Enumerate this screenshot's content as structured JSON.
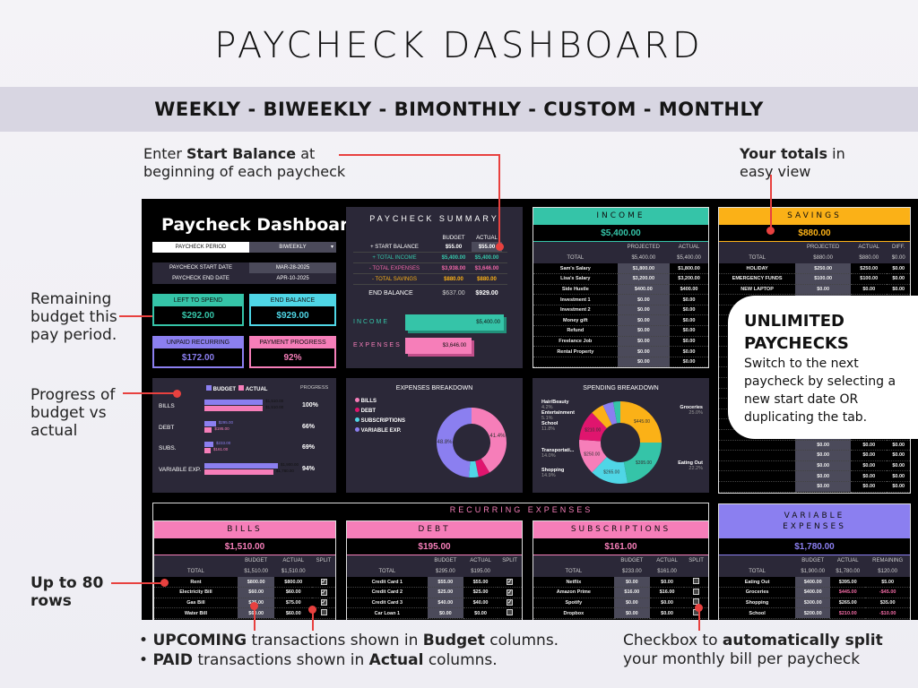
{
  "header": {
    "title": "PAYCHECK DASHBOARD",
    "frequencies": "WEEKLY - BIWEEKLY - BIMONTHLY - CUSTOM - MONTHLY"
  },
  "annotations": {
    "start_balance_pre": "Enter ",
    "start_balance_bold": "Start Balance",
    "start_balance_post": " at",
    "start_balance_line2": "beginning of each paycheck",
    "totals_bold": "Your totals",
    "totals_post": " in",
    "totals_line2": "easy view",
    "remaining": "Remaining budget this pay period.",
    "progress": "Progress of budget vs actual",
    "rows": "Up to 80 rows",
    "upcoming_bold": "UPCOMING",
    "upcoming_mid": " transactions shown in ",
    "upcoming_bold2": "Budget",
    "upcoming_post": " columns.",
    "paid_bold": "PAID",
    "paid_mid": " transactions shown in ",
    "paid_bold2": "Actual",
    "paid_post": " columns.",
    "split_pre": "Checkbox to ",
    "split_bold": "automatically split",
    "split_line2": "your monthly bill per paycheck",
    "callout_title1": "UNLIMITED",
    "callout_title2": "PAYCHECKS",
    "callout_body": "Switch to the next paycheck by selecting a new start date OR duplicating the tab."
  },
  "dashboard": {
    "title": "Paycheck Dashboard",
    "period_label": "PAYCHECK PERIOD",
    "period_value": "BIWEEKLY",
    "start_label": "PAYCHECK START DATE",
    "start_value": "Mar-28-2025",
    "end_label": "PAYCHECK END DATE",
    "end_value": "Apr-10-2025",
    "kpis": [
      {
        "label": "LEFT TO SPEND",
        "value": "$292.00",
        "color": "#35c4a8"
      },
      {
        "label": "END BALANCE",
        "value": "$929.00",
        "color": "#4fd6e6"
      },
      {
        "label": "UNPAID RECURRING",
        "value": "$172.00",
        "color": "#8b7ff0"
      },
      {
        "label": "PAYMENT PROGRESS",
        "value": "92%",
        "color": "#f67eb9"
      }
    ]
  },
  "summary": {
    "title": "PAYCHECK  SUMMARY",
    "col_budget": "BUDGET",
    "col_actual": "ACTUAL",
    "rows": [
      {
        "label": "+ START BALANCE",
        "budget": "$55.00",
        "actual": "$55.00",
        "color": "#ffffff"
      },
      {
        "label": "+ TOTAL INCOME",
        "budget": "$5,400.00",
        "actual": "$5,400.00",
        "color": "#35c4a8"
      },
      {
        "label": "- TOTAL EXPENSES",
        "budget": "$3,938.00",
        "actual": "$3,646.00",
        "color": "#f067a8"
      },
      {
        "label": "- TOTAL SAVINGS",
        "budget": "$880.00",
        "actual": "$880.00",
        "color": "#fbb117"
      }
    ],
    "end_label": "END BALANCE",
    "end_budget": "$637.00",
    "end_actual": "$929.00",
    "income_label": "INCOME",
    "income_value": "$5,400.00",
    "income_amount": 5400,
    "expenses_label": "EXPENSES",
    "expenses_value": "$3,646.00",
    "expenses_amount": 3646
  },
  "income": {
    "title": "INCOME",
    "total": "$5,400.00",
    "color": "#35c4a8",
    "col1": "PROJECTED",
    "col2": "ACTUAL",
    "total_label": "TOTAL",
    "total1": "$5,400.00",
    "total2": "$5,400.00",
    "rows": [
      [
        "Sam's Salary",
        "$1,800.00",
        "$1,800.00"
      ],
      [
        "Lisa's Salary",
        "$3,200.00",
        "$3,200.00"
      ],
      [
        "Side Hustle",
        "$400.00",
        "$400.00"
      ],
      [
        "Investment 1",
        "$0.00",
        "$0.00"
      ],
      [
        "Investment 2",
        "$0.00",
        "$0.00"
      ],
      [
        "Money gift",
        "$0.00",
        "$0.00"
      ],
      [
        "Refund",
        "$0.00",
        "$0.00"
      ],
      [
        "Freelance Job",
        "$0.00",
        "$0.00"
      ],
      [
        "Rental Property",
        "$0.00",
        "$0.00"
      ],
      [
        "",
        "$0.00",
        "$0.00"
      ]
    ]
  },
  "savings": {
    "title": "SAVINGS",
    "total": "$880.00",
    "color": "#fbb117",
    "col1": "PROJECTED",
    "col2": "ACTUAL",
    "col3": "DIFF.",
    "total_label": "TOTAL",
    "total1": "$880.00",
    "total2": "$880.00",
    "total3": "$0.00",
    "rows": [
      [
        "HOLIDAY",
        "$250.00",
        "$250.00",
        "$0.00"
      ],
      [
        "EMERGENCY FUNDS",
        "$100.00",
        "$100.00",
        "$0.00"
      ],
      [
        "NEW LAPTOP",
        "$0.00",
        "$0.00",
        "$0.00"
      ]
    ],
    "tail_rows": [
      [
        "",
        "$0.00",
        "$0.00",
        "$0.00"
      ],
      [
        "",
        "$0.00",
        "$0.00",
        "$0.00"
      ],
      [
        "",
        "$0.00",
        "$0.00",
        "$0.00"
      ],
      [
        "",
        "$0.00",
        "$0.00",
        "$0.00"
      ],
      [
        "",
        "$0.00",
        "$0.00",
        "$0.00"
      ]
    ]
  },
  "progress_chart": {
    "legend_budget": "BUDGET",
    "legend_actual": "ACTUAL",
    "col_progress": "PROGRESS",
    "budget_color": "#8b7ff0",
    "actual_color": "#f67eb9",
    "rows": [
      {
        "label": "BILLS",
        "budget": 1510,
        "actual": 1510,
        "budget_text": "$1,510.00",
        "actual_text": "$1,510.00",
        "progress": "100%"
      },
      {
        "label": "DEBT",
        "budget": 295,
        "actual": 195,
        "budget_text": "$295.00",
        "actual_text": "$195.00",
        "progress": "66%"
      },
      {
        "label": "SUBS.",
        "budget": 233,
        "actual": 161,
        "budget_text": "$233.00",
        "actual_text": "$161.00",
        "progress": "69%"
      },
      {
        "label": "VARIABLE EXP.",
        "budget": 1900,
        "actual": 1780,
        "budget_text": "$1,900.00",
        "actual_text": "$1,780.00",
        "progress": "94%"
      }
    ]
  },
  "chart_data": [
    {
      "type": "pie",
      "title": "EXPENSES BREAKDOWN",
      "legend": "top-left",
      "slices": [
        {
          "name": "BILLS",
          "value": 41.4,
          "label": "41.4%",
          "color": "#f67eb9"
        },
        {
          "name": "DEBT",
          "value": 5.4,
          "label": "",
          "color": "#e0156e"
        },
        {
          "name": "SUBSCRIPTIONS",
          "value": 4.4,
          "label": "",
          "color": "#4fd6e6"
        },
        {
          "name": "VARIABLE EXP.",
          "value": 48.8,
          "label": "48.8%",
          "color": "#8b7ff0"
        }
      ]
    },
    {
      "type": "pie",
      "title": "SPENDING BREAKDOWN",
      "slices": [
        {
          "name": "Groceries",
          "value": 25.0,
          "pct": "25.0%",
          "label": "$445.00",
          "color": "#fbb117"
        },
        {
          "name": "Eating Out",
          "value": 22.2,
          "pct": "22.2%",
          "label": "$395.00",
          "color": "#35c4a8"
        },
        {
          "name": "Shopping",
          "value": 14.9,
          "pct": "14.9%",
          "label": "$265.00",
          "color": "#4fd6e6"
        },
        {
          "name": "Transportati...",
          "value": 14.0,
          "pct": "14.0%",
          "label": "$250.00",
          "color": "#f67eb9"
        },
        {
          "name": "School",
          "value": 11.8,
          "pct": "11.8%",
          "label": "$210.00",
          "color": "#e0156e"
        },
        {
          "name": "Entertainment",
          "value": 5.1,
          "pct": "5.1%",
          "label": "",
          "color": "#fbb117"
        },
        {
          "name": "Hair/Beauty",
          "value": 4.2,
          "pct": "4.2%",
          "label": "",
          "color": "#8b7ff0"
        },
        {
          "name": "",
          "value": 2.8,
          "pct": "",
          "label": "",
          "color": "#35c4a8"
        }
      ]
    }
  ],
  "recurring": {
    "title": "RECURRING EXPENSES",
    "bills": {
      "title": "BILLS",
      "total": "$1,510.00",
      "col1": "BUDGET",
      "col2": "ACTUAL",
      "col3": "SPLIT",
      "total_label": "TOTAL",
      "total1": "$1,510.00",
      "total2": "$1,510.00",
      "rows": [
        [
          "Rent",
          "$800.00",
          "$800.00",
          true
        ],
        [
          "Electricity Bill",
          "$60.00",
          "$60.00",
          true
        ],
        [
          "Gas Bill",
          "$25.00",
          "$75.00",
          true
        ],
        [
          "Water Bill",
          "$60.00",
          "$60.00",
          false
        ]
      ]
    },
    "debt": {
      "title": "DEBT",
      "total": "$195.00",
      "col1": "BUDGET",
      "col2": "ACTUAL",
      "col3": "SPLIT",
      "total_label": "TOTAL",
      "total1": "$295.00",
      "total2": "$195.00",
      "rows": [
        [
          "Credit Card 1",
          "$55.00",
          "$55.00",
          true
        ],
        [
          "Credit Card 2",
          "$25.00",
          "$25.00",
          true
        ],
        [
          "Credit Card 3",
          "$40.00",
          "$40.00",
          true
        ],
        [
          "Car Loan 1",
          "$0.00",
          "$0.00",
          false
        ]
      ]
    },
    "subscriptions": {
      "title": "SUBSCRIPTIONS",
      "total": "$161.00",
      "col1": "BUDGET",
      "col2": "ACTUAL",
      "col3": "SPLIT",
      "total_label": "TOTAL",
      "total1": "$233.00",
      "total2": "$161.00",
      "rows": [
        [
          "Netflix",
          "$0.00",
          "$0.00",
          false
        ],
        [
          "Amazon Prime",
          "$16.00",
          "$16.00",
          false
        ],
        [
          "Spotify",
          "$0.00",
          "$0.00",
          false
        ],
        [
          "Dropbox",
          "$0.00",
          "$0.00",
          false
        ]
      ]
    }
  },
  "variable": {
    "title1": "VARIABLE",
    "title2": "EXPENSES",
    "total": "$1,780.00",
    "color": "#8b7ff0",
    "col1": "BUDGET",
    "col2": "ACTUAL",
    "col3": "REMAINING",
    "total_label": "TOTAL",
    "total1": "$1,900.00",
    "total2": "$1,780.00",
    "total3": "$120.00",
    "rows": [
      [
        "Eating Out",
        "$400.00",
        "$395.00",
        "$5.00"
      ],
      [
        "Groceries",
        "$400.00",
        "$445.00",
        "-$45.00"
      ],
      [
        "Shopping",
        "$300.00",
        "$265.00",
        "$35.00"
      ],
      [
        "School",
        "$200.00",
        "$210.00",
        "-$10.00"
      ]
    ]
  }
}
